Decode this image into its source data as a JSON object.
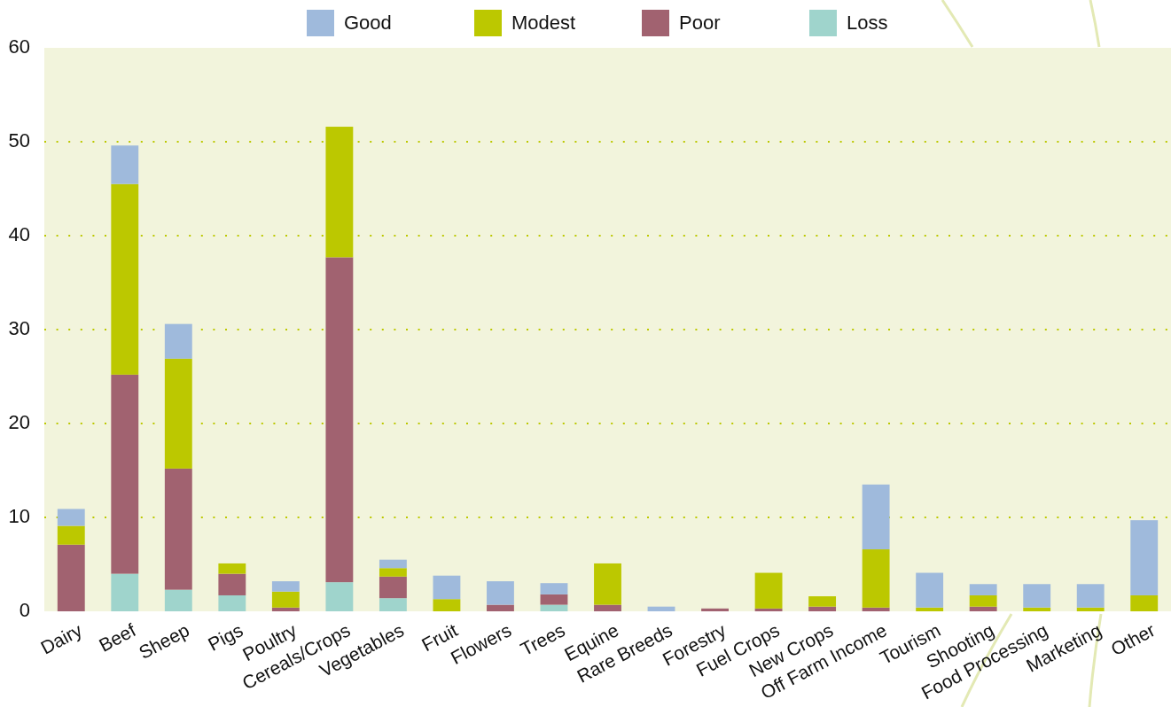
{
  "chart_data": {
    "type": "bar",
    "stacked": true,
    "categories": [
      "Dairy",
      "Beef",
      "Sheep",
      "Pigs",
      "Poultry",
      "Cereals/Crops",
      "Vegetables",
      "Fruit",
      "Flowers",
      "Trees",
      "Equine",
      "Rare Breeds",
      "Forestry",
      "Fuel Crops",
      "New Crops",
      "Off Farm Income",
      "Tourism",
      "Shooting",
      "Food Processing",
      "Marketing",
      "Other"
    ],
    "series": [
      {
        "name": "Loss",
        "color": "#9fd4cc",
        "values": [
          0,
          4.0,
          2.3,
          1.7,
          0,
          3.1,
          1.4,
          0,
          0,
          0.7,
          0,
          0,
          0,
          0,
          0,
          0,
          0,
          0,
          0,
          0,
          0
        ]
      },
      {
        "name": "Poor",
        "color": "#a16270",
        "values": [
          7.1,
          21.2,
          12.9,
          2.3,
          0.4,
          34.6,
          2.3,
          0,
          0.7,
          1.1,
          0.7,
          0,
          0.3,
          0.3,
          0.5,
          0.4,
          0,
          0.5,
          0,
          0,
          0
        ]
      },
      {
        "name": "Modest",
        "color": "#bcc800",
        "values": [
          2.0,
          20.3,
          11.7,
          1.1,
          1.7,
          13.9,
          0.9,
          1.3,
          0,
          0,
          4.4,
          0,
          0,
          3.8,
          1.1,
          6.2,
          0.4,
          1.2,
          0.4,
          0.4,
          1.7
        ]
      },
      {
        "name": "Good",
        "color": "#9fbadc",
        "values": [
          1.8,
          4.1,
          3.7,
          0,
          1.1,
          0,
          0.9,
          2.5,
          2.5,
          1.2,
          0,
          0.5,
          0,
          0,
          0,
          6.9,
          3.7,
          1.2,
          2.5,
          2.5,
          8.0
        ]
      }
    ],
    "ylim": [
      0,
      60
    ],
    "yticks": [
      0,
      10,
      20,
      30,
      40,
      50,
      60
    ],
    "grid": "y",
    "legend": "top"
  }
}
